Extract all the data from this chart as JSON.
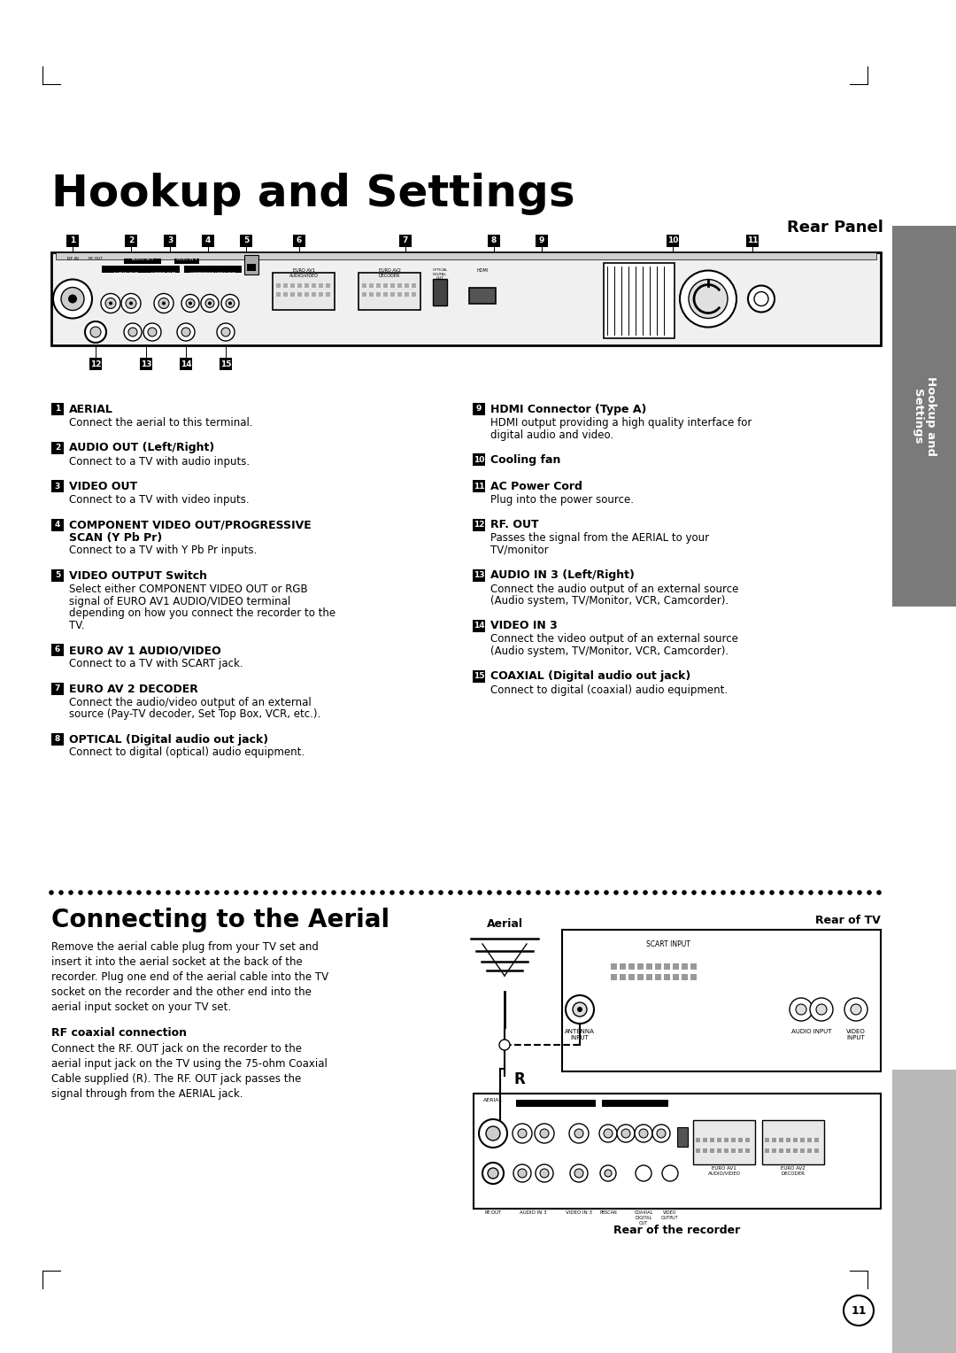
{
  "title": "Hookup and Settings",
  "section_title": "Rear Panel",
  "bg_color": "#ffffff",
  "page_number": "11",
  "items_left": [
    {
      "num": "1",
      "bold": "AERIAL",
      "text": "Connect the aerial to this terminal."
    },
    {
      "num": "2",
      "bold": "AUDIO OUT (Left/Right)",
      "text": "Connect to a TV with audio inputs."
    },
    {
      "num": "3",
      "bold": "VIDEO OUT",
      "text": "Connect to a TV with video inputs."
    },
    {
      "num": "4",
      "bold": "COMPONENT VIDEO OUT/PROGRESSIVE\nSCAN (Y Pb Pr)",
      "text": "Connect to a TV with Y Pb Pr inputs."
    },
    {
      "num": "5",
      "bold": "VIDEO OUTPUT Switch",
      "text": "Select either COMPONENT VIDEO OUT or RGB\nsignal of EURO AV1 AUDIO/VIDEO terminal\ndepending on how you connect the recorder to the\nTV."
    },
    {
      "num": "6",
      "bold": "EURO AV 1 AUDIO/VIDEO",
      "text": "Connect to a TV with SCART jack."
    },
    {
      "num": "7",
      "bold": "EURO AV 2 DECODER",
      "text": "Connect the audio/video output of an external\nsource (Pay-TV decoder, Set Top Box, VCR, etc.)."
    },
    {
      "num": "8",
      "bold": "OPTICAL (Digital audio out jack)",
      "text": "Connect to digital (optical) audio equipment."
    }
  ],
  "items_right": [
    {
      "num": "9",
      "bold": "HDMI Connector (Type A)",
      "text": "HDMI output providing a high quality interface for\ndigital audio and video."
    },
    {
      "num": "10",
      "bold": "Cooling fan",
      "text": ""
    },
    {
      "num": "11",
      "bold": "AC Power Cord",
      "text": "Plug into the power source."
    },
    {
      "num": "12",
      "bold": "RF. OUT",
      "text": "Passes the signal from the AERIAL to your\nTV/monitor"
    },
    {
      "num": "13",
      "bold": "AUDIO IN 3 (Left/Right)",
      "text": "Connect the audio output of an external source\n(Audio system, TV/Monitor, VCR, Camcorder)."
    },
    {
      "num": "14",
      "bold": "VIDEO IN 3",
      "text": "Connect the video output of an external source\n(Audio system, TV/Monitor, VCR, Camcorder)."
    },
    {
      "num": "15",
      "bold": "COAXIAL (Digital audio out jack)",
      "text": "Connect to digital (coaxial) audio equipment."
    }
  ],
  "connecting_title": "Connecting to the Aerial",
  "connecting_text1": "Remove the aerial cable plug from your TV set and\ninsert it into the aerial socket at the back of the\nrecorder. Plug one end of the aerial cable into the TV\nsocket on the recorder and the other end into the\naerial input socket on your TV set.",
  "rf_title": "RF coaxial connection",
  "rf_text": "Connect the RF. OUT jack on the recorder to the\naerial input jack on the TV using the 75-ohm Coaxial\nCable supplied (R). The RF. OUT jack passes the\nsignal through from the AERIAL jack."
}
